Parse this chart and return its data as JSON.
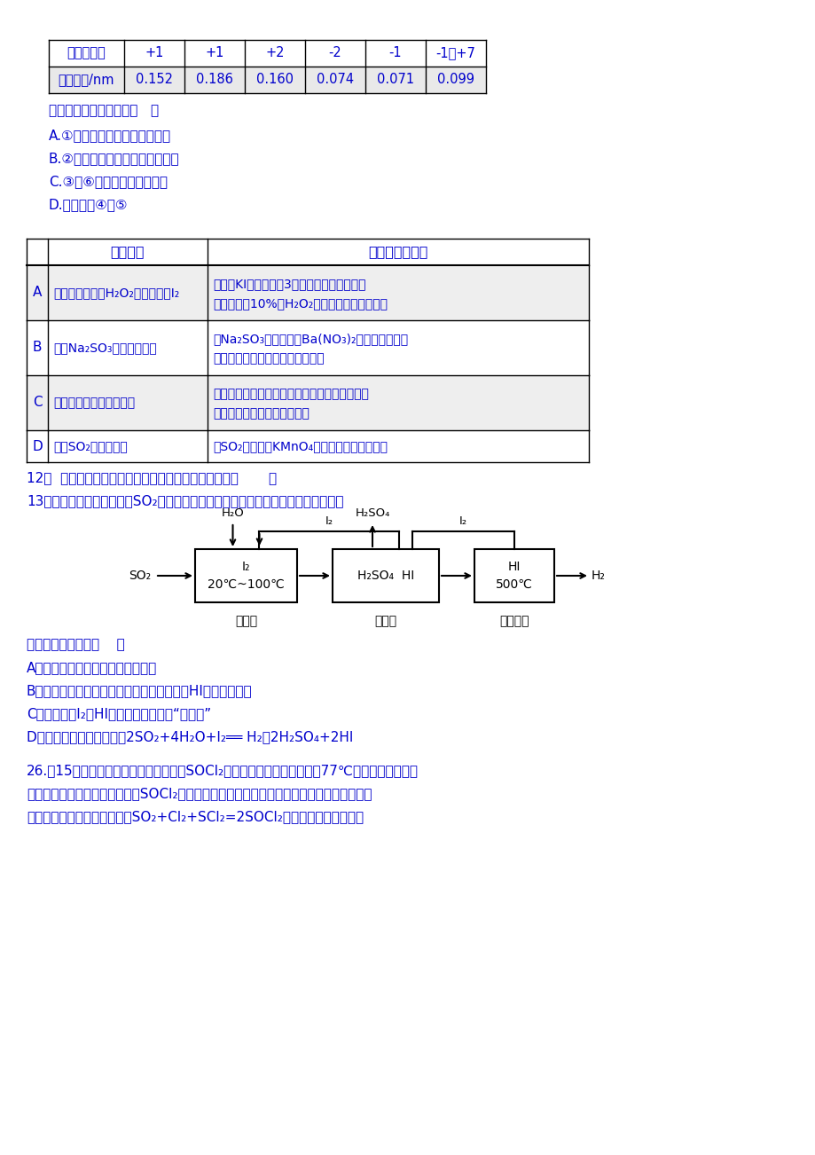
{
  "bg_color": "#ffffff",
  "text_color": "#0000cc",
  "table1_rows": [
    [
      "主要化合价",
      "+1",
      "+1",
      "+2",
      "-2",
      "-1",
      "-1、+7"
    ],
    [
      "原子半径/nm",
      "0.152",
      "0.186",
      "0.160",
      "0.074",
      "0.071",
      "0.099"
    ]
  ],
  "question_text": "下列说法中不正确的是（   ）",
  "options_q11": [
    "A.①的单质加热时能与氧气化合",
    "B.②的单质常温下可与水劇烈反应",
    "C.③与⑥可以形成离子化合物",
    "D.非金属性④＞⑤"
  ],
  "table2_rows": [
    [
      "A",
      "证明酸性条件下H₂O₂氧化性强于I₂",
      "向淠粉KI溶液中滴入3滴稀硫酸，未见溶液变",
      "蓝；再加入10%的H₂O₂溶液，溶液立即变蓝色"
    ],
    [
      "B",
      "检验Na₂SO₃溶液是否变质",
      "向Na₂SO₃溶液中加入Ba(NO₃)₂溶液，出现白色",
      "沉淠，再加入稀硫酸，沉淠不溶解"
    ],
    [
      "C",
      "证明碳的非金属性强于硅",
      "将浓盐酸滴入碳酸钓固体中，生成的气体通入盛",
      "有水玻璃的试管中，出现浑浓"
    ],
    [
      "D",
      "证明SO₂具有漂白性",
      "将SO₂通入酸性KMnO₄溶液中，溶液紫色褪去",
      ""
    ]
  ],
  "q12_text": "12、  下列实验操作及现象能够达成相应实验目的的是（       ）",
  "q13_text": "13、碘循环工艺不仅能吸收SO₂降低环境污染，同时又能制得氢气，具体流程如下：",
  "q13_options": [
    "A．分离器中的物质分离操作为过滤",
    "B．膜反应器中，增大压强有利于提高速率和HI的平衡转化率",
    "C．该工艺中I₂和HI的相互转化体现了“磘循环”",
    "D．磘循环工艺的总反应为2SO₂+4H₂O+I₂══ H₂＋2H₂SO₄+2HI"
  ],
  "q26_lines": [
    "26.（15分）亚硫酰氯（俗称氯化亚碓，SOCl₂）是一种液态化合物，永点77℃，在农药、制药行",
    "业、有机合成等领域用途广泛。SOCl₂遇水剧烈反应，液面上产生白雾，并常有刺激性气味的",
    "气体产生，实验室合成原理：SO₂+Cl₂+SCl₂=2SOCl₂，部分装置如图所示："
  ]
}
